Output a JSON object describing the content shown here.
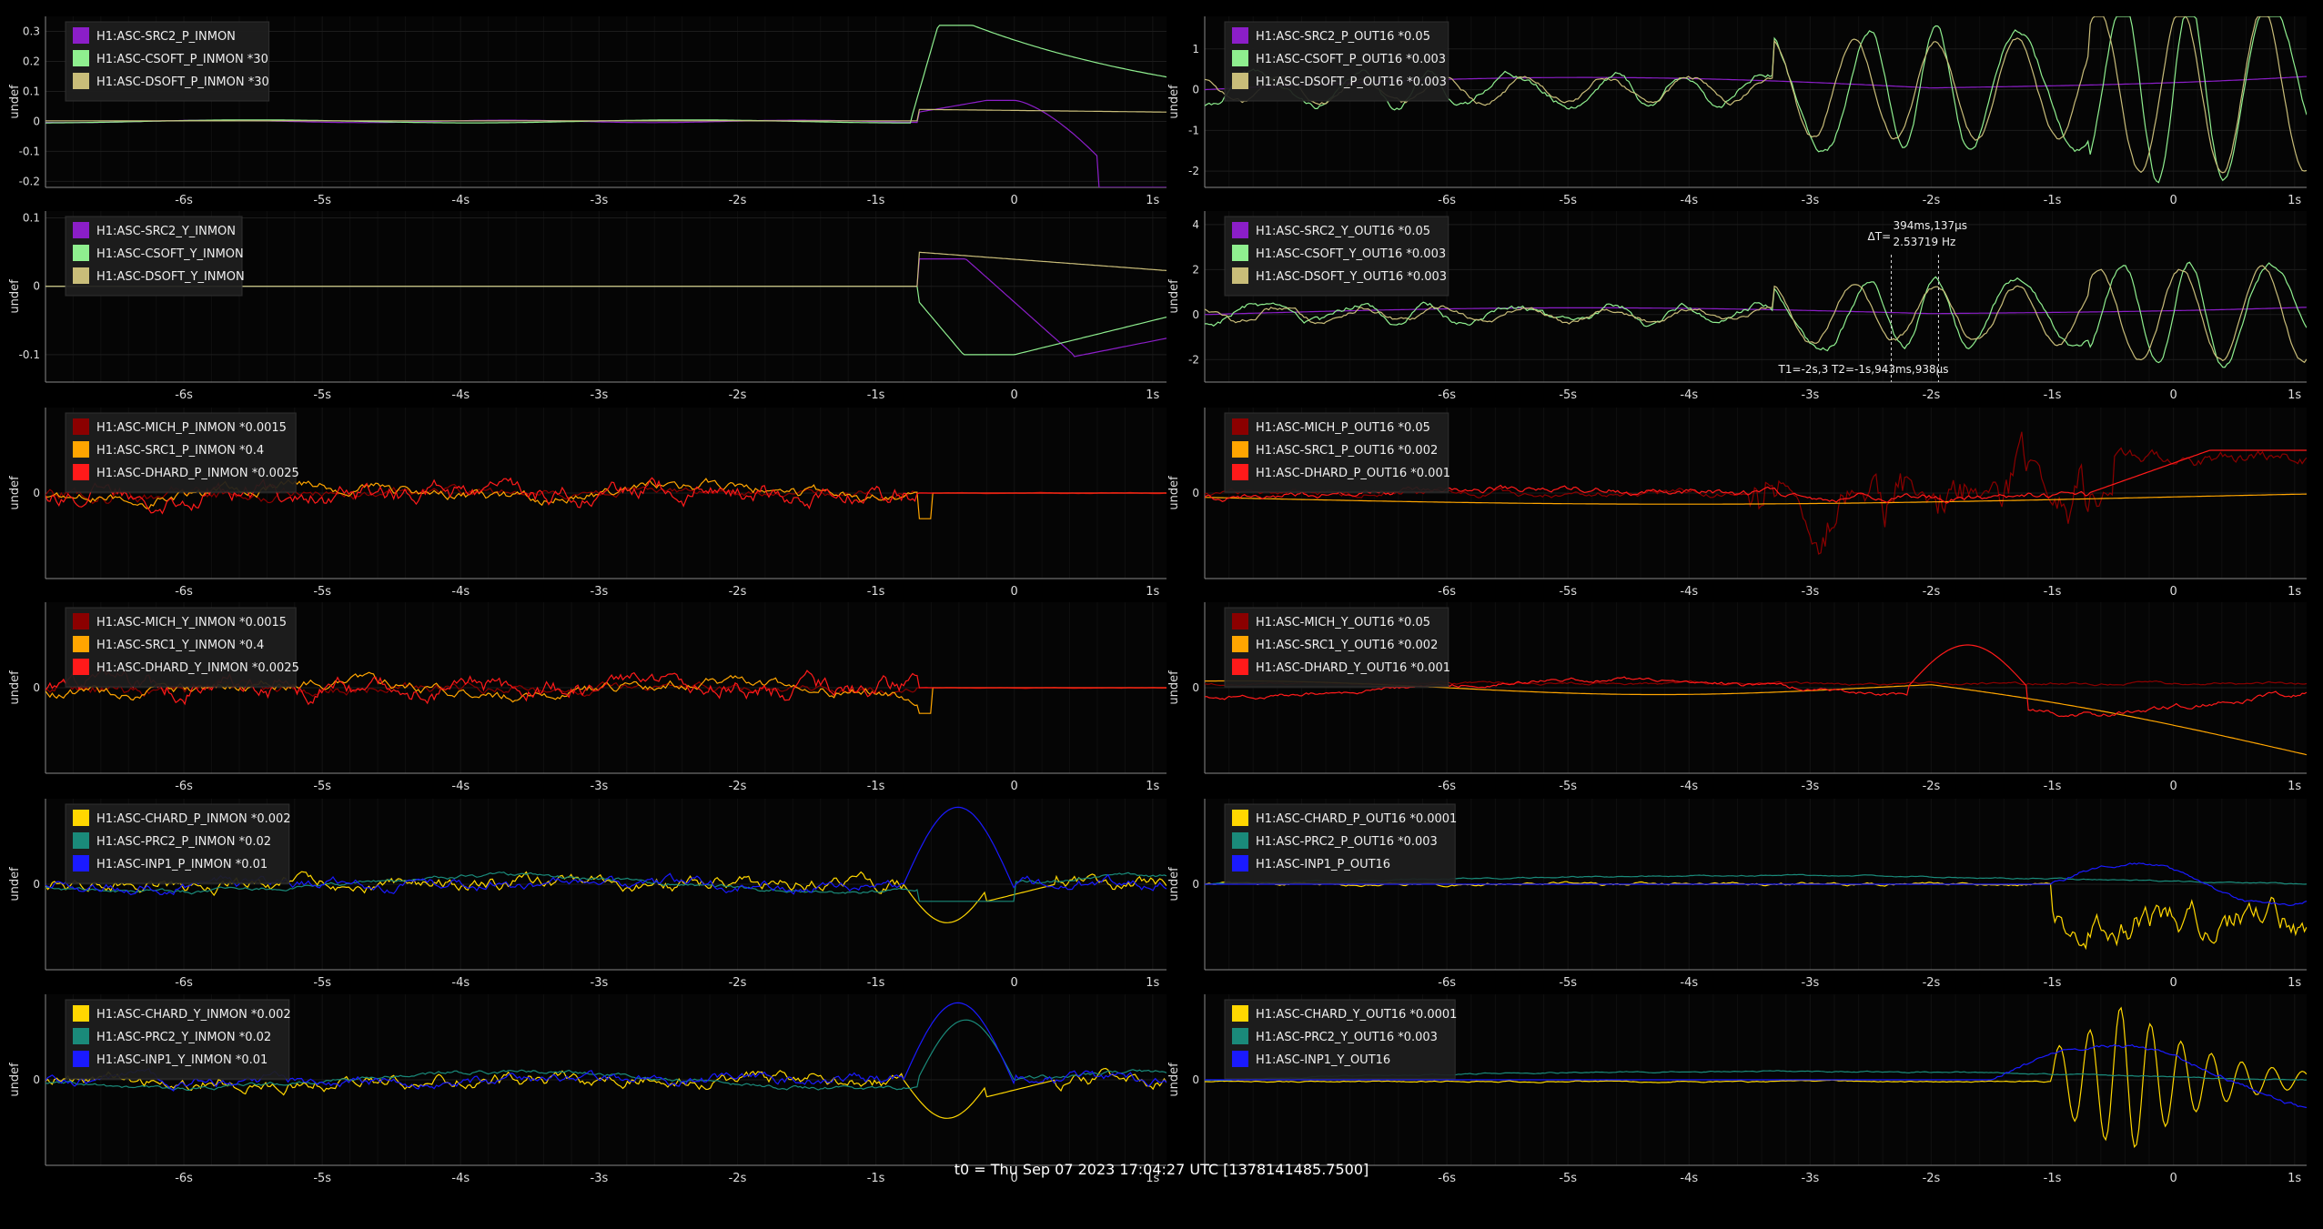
{
  "footer": "t0 = Thu Sep 07 2023 17:04:27 UTC [1378141485.7500]",
  "ylabel": "undef",
  "xticks": [
    -6,
    -5,
    -4,
    -3,
    -2,
    -1,
    0,
    1
  ],
  "xtick_labels": [
    "-6s",
    "-5s",
    "-4s",
    "-3s",
    "-2s",
    "-1s",
    "0",
    "1s"
  ],
  "cursor": {
    "dt_label": "ΔT=",
    "dt_value": "394ms,137µs",
    "freq": "2.53719 Hz",
    "t_label": "T1=-2s,3 T2=-1s,943ms,938µs"
  },
  "chart_data": [
    {
      "type": "line",
      "xlim": [
        -7,
        1.1
      ],
      "ylim": [
        -0.22,
        0.35
      ],
      "yticks": [
        -0.2,
        -0.1,
        0,
        0.1,
        0.2,
        0.3
      ],
      "ytick_labels": [
        "-0.2",
        "-0.1",
        "0",
        "0.1",
        "0.2",
        "0.3"
      ],
      "series": [
        {
          "name": "H1:ASC-SRC2_P_INMON",
          "color": "#8b1ec8",
          "shape": "src2p_in"
        },
        {
          "name": "H1:ASC-CSOFT_P_INMON *30",
          "color": "#8fef8f",
          "shape": "csoftp_in"
        },
        {
          "name": "H1:ASC-DSOFT_P_INMON *30",
          "color": "#c9bd79",
          "shape": "dsoftp_in"
        }
      ]
    },
    {
      "type": "line",
      "xlim": [
        -8,
        1.1
      ],
      "ylim": [
        -2.4,
        1.8
      ],
      "yticks": [
        -2,
        -1,
        0,
        1
      ],
      "ytick_labels": [
        "-2",
        "-1",
        "0",
        "1"
      ],
      "series": [
        {
          "name": "H1:ASC-SRC2_P_OUT16 *0.05",
          "color": "#8b1ec8",
          "shape": "src2_out"
        },
        {
          "name": "H1:ASC-CSOFT_P_OUT16 *0.003",
          "color": "#8fef8f",
          "shape": "osc_out"
        },
        {
          "name": "H1:ASC-DSOFT_P_OUT16 *0.003",
          "color": "#c9bd79",
          "shape": "osc_out2"
        }
      ]
    },
    {
      "type": "line",
      "xlim": [
        -7,
        1.1
      ],
      "ylim": [
        -0.14,
        0.11
      ],
      "yticks": [
        -0.1,
        0,
        0.1
      ],
      "ytick_labels": [
        "-0.1",
        "0",
        "0.1"
      ],
      "series": [
        {
          "name": "H1:ASC-SRC2_Y_INMON",
          "color": "#8b1ec8",
          "shape": "src2y_in"
        },
        {
          "name": "H1:ASC-CSOFT_Y_INMON",
          "color": "#8fef8f",
          "shape": "csofty_in"
        },
        {
          "name": "H1:ASC-DSOFT_Y_INMON",
          "color": "#c9bd79",
          "shape": "dsofty_in"
        }
      ]
    },
    {
      "type": "line",
      "xlim": [
        -8,
        1.1
      ],
      "ylim": [
        -3,
        4.6
      ],
      "yticks": [
        -2,
        0,
        2,
        4
      ],
      "ytick_labels": [
        "-2",
        "0",
        "2",
        "4"
      ],
      "series": [
        {
          "name": "H1:ASC-SRC2_Y_OUT16 *0.05",
          "color": "#8b1ec8",
          "shape": "src2_out"
        },
        {
          "name": "H1:ASC-CSOFT_Y_OUT16 *0.003",
          "color": "#8fef8f",
          "shape": "osc_out"
        },
        {
          "name": "H1:ASC-DSOFT_Y_OUT16 *0.003",
          "color": "#c9bd79",
          "shape": "osc_out2"
        }
      ]
    },
    {
      "type": "line",
      "xlim": [
        -7,
        1.1
      ],
      "ylim": [
        -1,
        1
      ],
      "yticks": [
        0
      ],
      "ytick_labels": [
        "0"
      ],
      "series": [
        {
          "name": "H1:ASC-MICH_P_INMON *0.0015",
          "color": "#8b0000",
          "shape": "wig"
        },
        {
          "name": "H1:ASC-SRC1_P_INMON *0.4",
          "color": "#ffa500",
          "shape": "wig2"
        },
        {
          "name": "H1:ASC-DHARD_P_INMON *0.0025",
          "color": "#ff1a1a",
          "shape": "wig3"
        }
      ]
    },
    {
      "type": "line",
      "xlim": [
        -8,
        1.1
      ],
      "ylim": [
        -1,
        1
      ],
      "yticks": [
        0
      ],
      "ytick_labels": [
        "0"
      ],
      "series": [
        {
          "name": "H1:ASC-MICH_P_OUT16 *0.05",
          "color": "#8b0000",
          "shape": "mich_out"
        },
        {
          "name": "H1:ASC-SRC1_P_OUT16 *0.002",
          "color": "#ffa500",
          "shape": "slow"
        },
        {
          "name": "H1:ASC-DHARD_P_OUT16 *0.001",
          "color": "#ff1a1a",
          "shape": "dhard_out"
        }
      ]
    },
    {
      "type": "line",
      "xlim": [
        -7,
        1.1
      ],
      "ylim": [
        -1,
        1
      ],
      "yticks": [
        0
      ],
      "ytick_labels": [
        "0"
      ],
      "series": [
        {
          "name": "H1:ASC-MICH_Y_INMON *0.0015",
          "color": "#8b0000",
          "shape": "wig"
        },
        {
          "name": "H1:ASC-SRC1_Y_INMON *0.4",
          "color": "#ffa500",
          "shape": "wig2"
        },
        {
          "name": "H1:ASC-DHARD_Y_INMON *0.0025",
          "color": "#ff1a1a",
          "shape": "wig3"
        }
      ]
    },
    {
      "type": "line",
      "xlim": [
        -8,
        1.1
      ],
      "ylim": [
        -1,
        1
      ],
      "yticks": [
        0
      ],
      "ytick_labels": [
        "0"
      ],
      "series": [
        {
          "name": "H1:ASC-MICH_Y_OUT16 *0.05",
          "color": "#8b0000",
          "shape": "mich_y_out"
        },
        {
          "name": "H1:ASC-SRC1_Y_OUT16 *0.002",
          "color": "#ffa500",
          "shape": "slow_y"
        },
        {
          "name": "H1:ASC-DHARD_Y_OUT16 *0.001",
          "color": "#ff1a1a",
          "shape": "dhard_y_out"
        }
      ]
    },
    {
      "type": "line",
      "xlim": [
        -7,
        1.1
      ],
      "ylim": [
        -1,
        1
      ],
      "yticks": [
        0
      ],
      "ytick_labels": [
        "0"
      ],
      "series": [
        {
          "name": "H1:ASC-CHARD_P_INMON *0.002",
          "color": "#ffd700",
          "shape": "chard_in"
        },
        {
          "name": "H1:ASC-PRC2_P_INMON *0.02",
          "color": "#1a8a7a",
          "shape": "prc2_in"
        },
        {
          "name": "H1:ASC-INP1_P_INMON *0.01",
          "color": "#1a1aff",
          "shape": "inp1_in"
        }
      ]
    },
    {
      "type": "line",
      "xlim": [
        -8,
        1.1
      ],
      "ylim": [
        -1,
        1
      ],
      "yticks": [
        0
      ],
      "ytick_labels": [
        "0"
      ],
      "series": [
        {
          "name": "H1:ASC-CHARD_P_OUT16 *0.0001",
          "color": "#ffd700",
          "shape": "chard_out"
        },
        {
          "name": "H1:ASC-PRC2_P_OUT16 *0.003",
          "color": "#1a8a7a",
          "shape": "prc2_out"
        },
        {
          "name": "H1:ASC-INP1_P_OUT16",
          "color": "#1a1aff",
          "shape": "inp1_out"
        }
      ]
    },
    {
      "type": "line",
      "xlim": [
        -7,
        1.1
      ],
      "ylim": [
        -1,
        1
      ],
      "yticks": [
        0
      ],
      "ytick_labels": [
        "0"
      ],
      "series": [
        {
          "name": "H1:ASC-CHARD_Y_INMON *0.002",
          "color": "#ffd700",
          "shape": "chard_in"
        },
        {
          "name": "H1:ASC-PRC2_Y_INMON *0.02",
          "color": "#1a8a7a",
          "shape": "prc2_in_y"
        },
        {
          "name": "H1:ASC-INP1_Y_INMON *0.01",
          "color": "#1a1aff",
          "shape": "inp1_in"
        }
      ]
    },
    {
      "type": "line",
      "xlim": [
        -8,
        1.1
      ],
      "ylim": [
        -1,
        1
      ],
      "yticks": [
        0
      ],
      "ytick_labels": [
        "0"
      ],
      "series": [
        {
          "name": "H1:ASC-CHARD_Y_OUT16 *0.0001",
          "color": "#ffd700",
          "shape": "chard_y_out"
        },
        {
          "name": "H1:ASC-PRC2_Y_OUT16 *0.003",
          "color": "#1a8a7a",
          "shape": "prc2_out"
        },
        {
          "name": "H1:ASC-INP1_Y_OUT16",
          "color": "#1a1aff",
          "shape": "inp1_y_out"
        }
      ]
    }
  ]
}
